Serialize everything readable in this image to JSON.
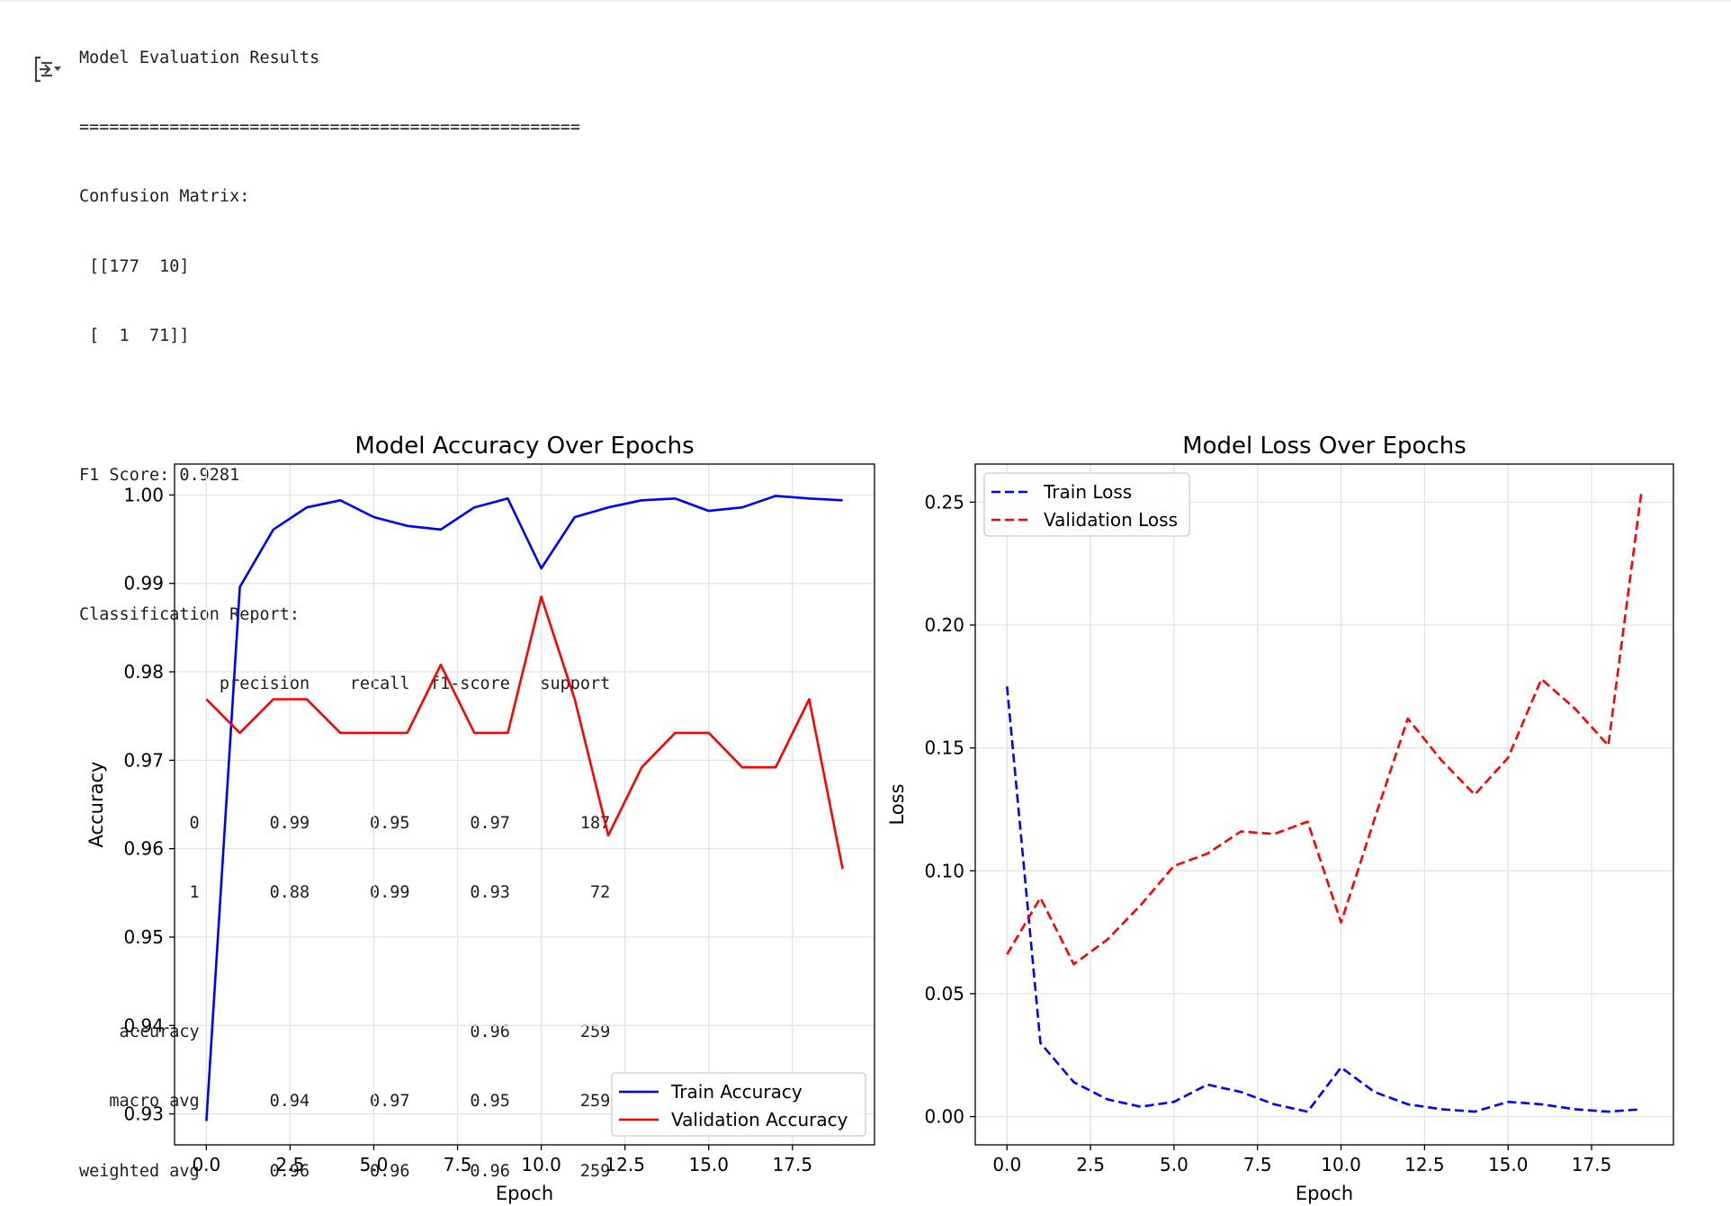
{
  "output": {
    "title": "Model Evaluation Results",
    "separator": "==================================================",
    "confusion_matrix_label": "Confusion Matrix:",
    "confusion_matrix_rows": [
      " [[177  10]",
      " [  1  71]]"
    ],
    "f1_line": "F1 Score: 0.9281",
    "report_label": "Classification Report:",
    "report_lines": [
      "              precision    recall  f1-score   support",
      "",
      "           0       0.99      0.95      0.97       187",
      "           1       0.88      0.99      0.93        72",
      "",
      "    accuracy                           0.96       259",
      "   macro avg       0.94      0.97      0.95       259",
      "weighted avg       0.96      0.96      0.96       259"
    ]
  },
  "icons": {
    "output_toggle": "output-expand-icon"
  },
  "chart_data": [
    {
      "type": "line",
      "title": "Model Accuracy Over Epochs",
      "xlabel": "Epoch",
      "ylabel": "Accuracy",
      "xlim": [
        -0.95,
        19.95
      ],
      "ylim": [
        0.9265,
        1.0035
      ],
      "xticks": [
        0,
        2.5,
        5,
        7.5,
        10,
        12.5,
        15,
        17.5
      ],
      "xtick_labels": [
        "0.0",
        "2.5",
        "5.0",
        "7.5",
        "10.0",
        "12.5",
        "15.0",
        "17.5"
      ],
      "yticks": [
        0.93,
        0.94,
        0.95,
        0.96,
        0.97,
        0.98,
        0.99,
        1.0
      ],
      "ytick_labels": [
        "0.93",
        "0.94",
        "0.95",
        "0.96",
        "0.97",
        "0.98",
        "0.99",
        "1.00"
      ],
      "grid": true,
      "legend_position": "lower-right",
      "x": [
        0,
        1,
        2,
        3,
        4,
        5,
        6,
        7,
        8,
        9,
        10,
        11,
        12,
        13,
        14,
        15,
        16,
        17,
        18,
        19
      ],
      "series": [
        {
          "name": "Train Accuracy",
          "color": "#0000ff",
          "dash": "solid",
          "values": [
            0.9292,
            0.9896,
            0.9961,
            0.9986,
            0.9994,
            0.9975,
            0.9965,
            0.9961,
            0.9986,
            0.9996,
            0.9917,
            0.9975,
            0.9986,
            0.9994,
            0.9996,
            0.9982,
            0.9986,
            0.9999,
            0.9996,
            0.9994
          ]
        },
        {
          "name": "Validation Accuracy",
          "color": "#ff0000",
          "dash": "solid",
          "values": [
            0.9769,
            0.9731,
            0.9769,
            0.9769,
            0.9731,
            0.9731,
            0.9731,
            0.9808,
            0.9731,
            0.9731,
            0.9885,
            0.9769,
            0.9615,
            0.9692,
            0.9731,
            0.9731,
            0.9692,
            0.9692,
            0.9769,
            0.9577
          ]
        }
      ]
    },
    {
      "type": "line",
      "title": "Model Loss Over Epochs",
      "xlabel": "Epoch",
      "ylabel": "Loss",
      "xlim": [
        -0.95,
        19.95
      ],
      "ylim": [
        -0.0115,
        0.2655
      ],
      "xticks": [
        0,
        2.5,
        5,
        7.5,
        10,
        12.5,
        15,
        17.5
      ],
      "xtick_labels": [
        "0.0",
        "2.5",
        "5.0",
        "7.5",
        "10.0",
        "12.5",
        "15.0",
        "17.5"
      ],
      "yticks": [
        0.0,
        0.05,
        0.1,
        0.15,
        0.2,
        0.25
      ],
      "ytick_labels": [
        "0.00",
        "0.05",
        "0.10",
        "0.15",
        "0.20",
        "0.25"
      ],
      "grid": true,
      "legend_position": "upper-left",
      "x": [
        0,
        1,
        2,
        3,
        4,
        5,
        6,
        7,
        8,
        9,
        10,
        11,
        12,
        13,
        14,
        15,
        16,
        17,
        18,
        19
      ],
      "series": [
        {
          "name": "Train Loss",
          "color": "#0000ff",
          "dash": "dashed",
          "values": [
            0.175,
            0.03,
            0.014,
            0.007,
            0.004,
            0.006,
            0.013,
            0.01,
            0.005,
            0.002,
            0.02,
            0.01,
            0.005,
            0.003,
            0.002,
            0.006,
            0.005,
            0.003,
            0.002,
            0.003
          ]
        },
        {
          "name": "Validation Loss",
          "color": "#ff0000",
          "dash": "dashed",
          "values": [
            0.066,
            0.089,
            0.062,
            0.072,
            0.086,
            0.102,
            0.107,
            0.116,
            0.115,
            0.12,
            0.079,
            0.121,
            0.162,
            0.145,
            0.131,
            0.146,
            0.178,
            0.166,
            0.151,
            0.255
          ]
        }
      ]
    }
  ]
}
